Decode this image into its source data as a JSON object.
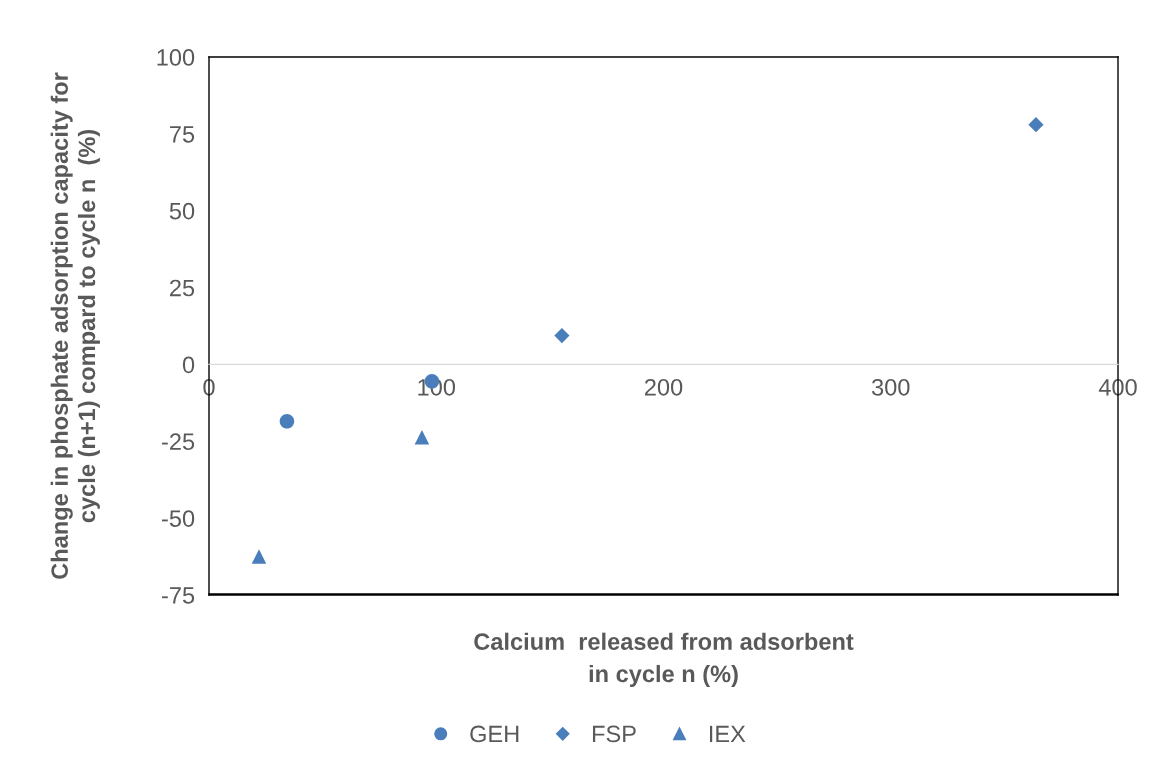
{
  "chart_data": {
    "type": "scatter",
    "xlabel": "Calcium  released from adsorbent\nin cycle n (%)",
    "ylabel": "Change in phosphate adsorption capacity for\ncycle (n+1) compard to cycle n  (%)",
    "series": [
      {
        "name": "GEH",
        "color": "#4a7ebb",
        "marker": "circle",
        "x": [
          34.3,
          98.1
        ],
        "values": [
          -18.5,
          -5.5
        ]
      },
      {
        "name": "FSP",
        "color": "#4a7ebb",
        "marker": "diamond",
        "x": [
          155.3,
          363.9
        ],
        "values": [
          9.4,
          78
        ]
      },
      {
        "name": "IEX",
        "color": "#4a7ebb",
        "marker": "triangle",
        "x": [
          22,
          93.7
        ],
        "values": [
          -62.5,
          -23.7
        ]
      }
    ],
    "xlim": [
      0,
      400
    ],
    "xticks": [
      0,
      100,
      200,
      300,
      400
    ],
    "ylim": [
      -75,
      100
    ],
    "yticks": [
      -75,
      -50,
      -25,
      0,
      25,
      50,
      75,
      100
    ],
    "grid": false,
    "legend": "bottom"
  }
}
